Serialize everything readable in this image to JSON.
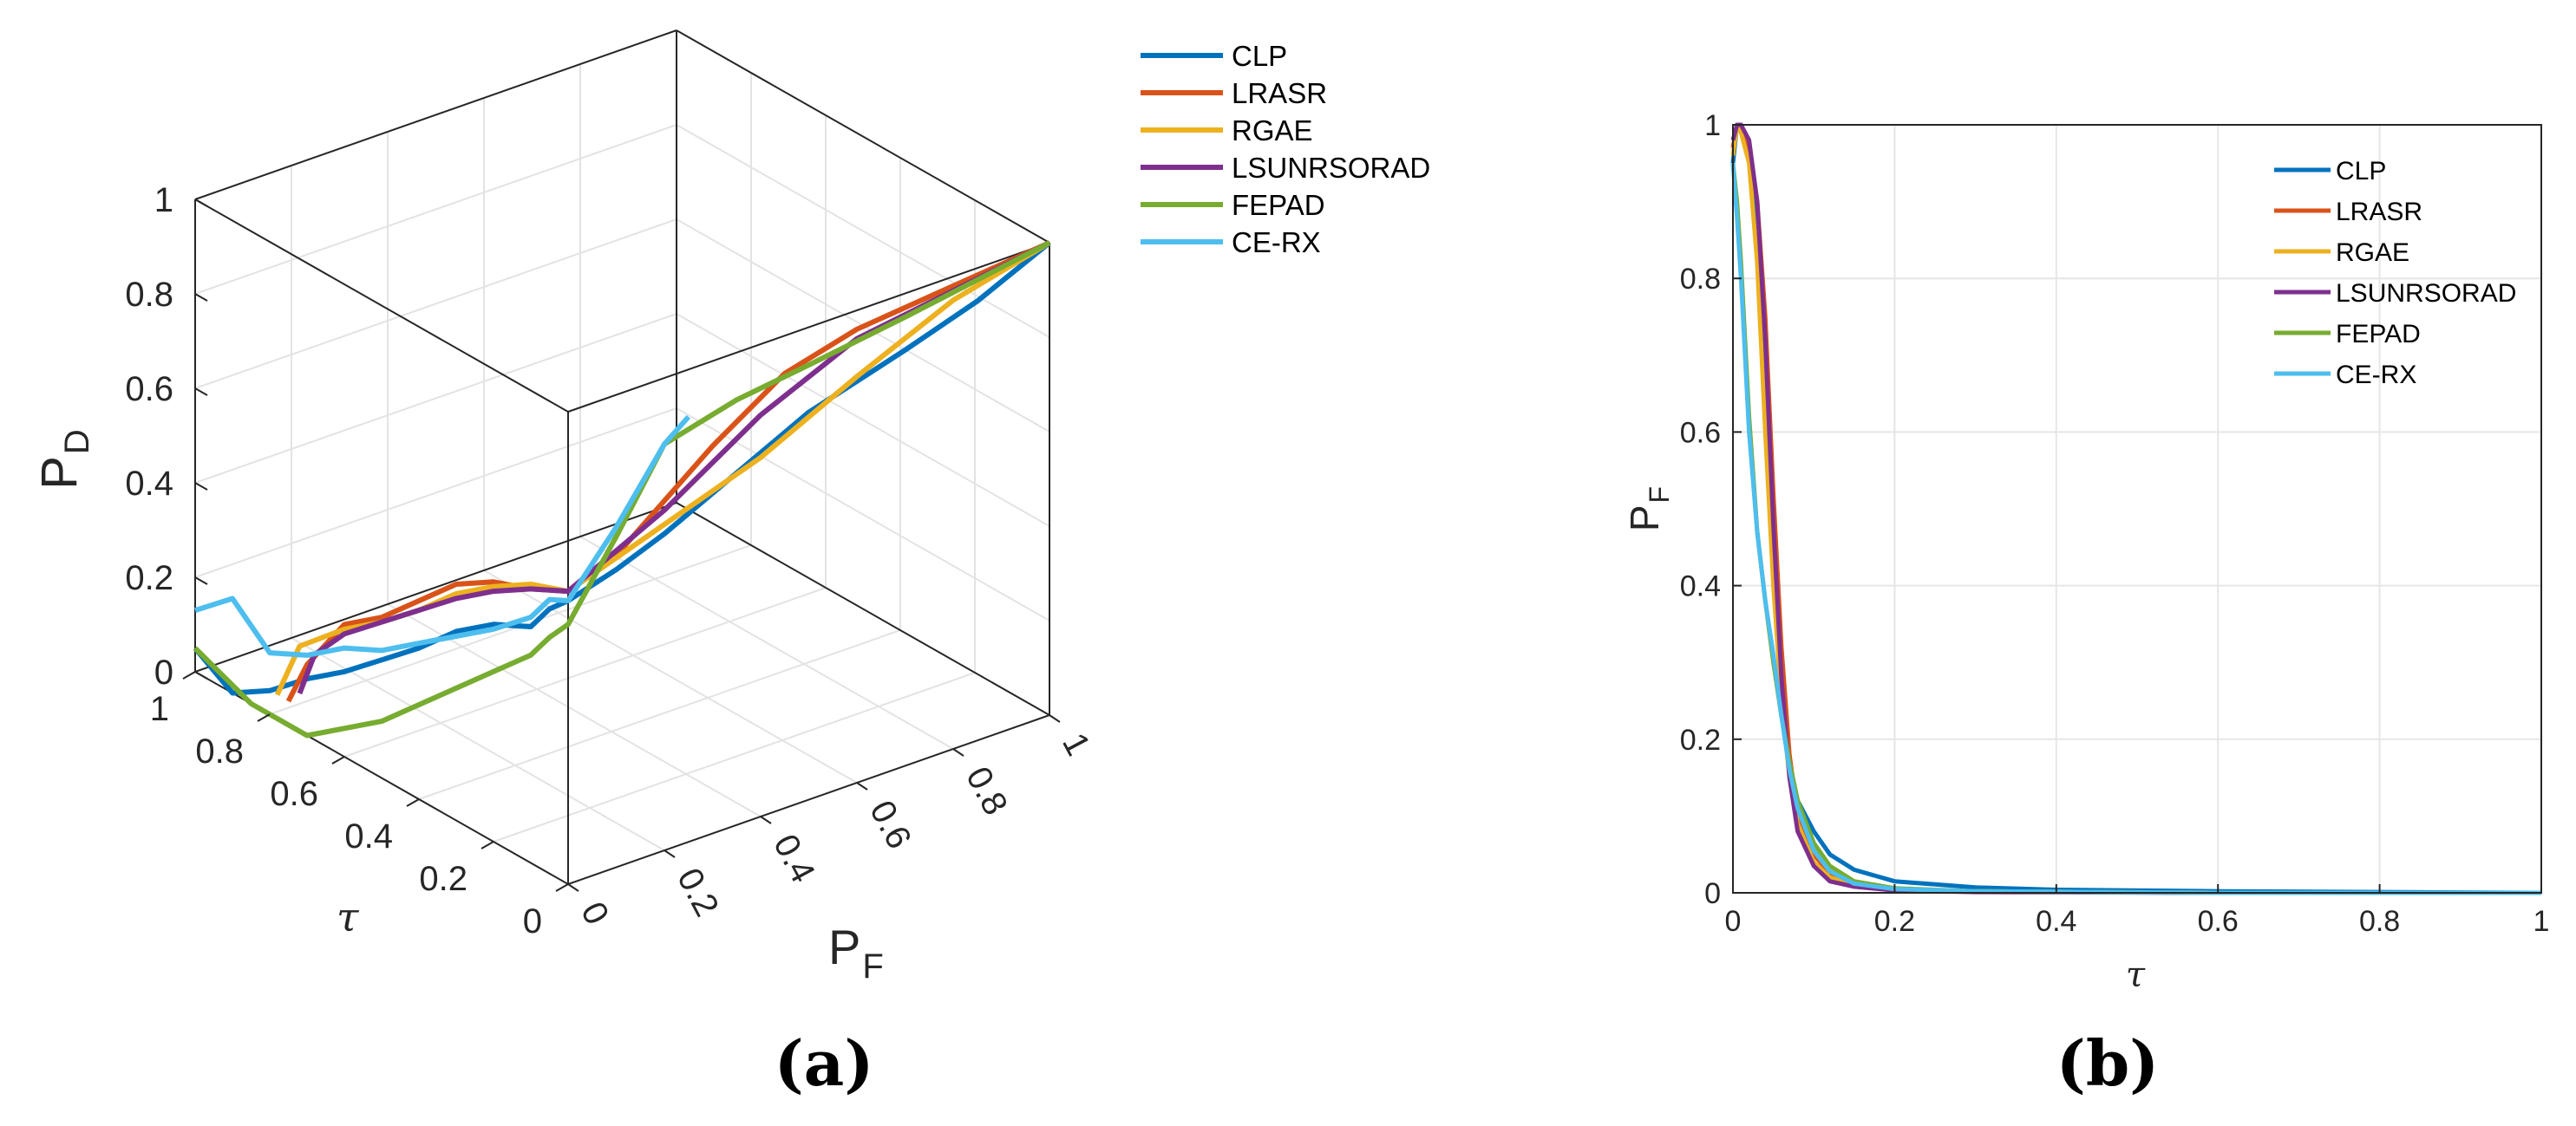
{
  "chart_data": [
    {
      "panel": "(a)",
      "type": "line3d",
      "series_names": [
        "CLP",
        "LRASR",
        "RGAE",
        "LSUNRSORAD",
        "FEPAD",
        "CE-RX"
      ],
      "colors": {
        "CLP": "#0072BD",
        "LRASR": "#D95319",
        "RGAE": "#EDB120",
        "LSUNRSORAD": "#7E2F8E",
        "FEPAD": "#77AC30",
        "CE-RX": "#4DBEEE"
      },
      "x_label_main": "P",
      "x_label_sub": "F",
      "y_label": "τ",
      "z_label_main": "P",
      "z_label_sub": "D",
      "x_ticks": [
        "0",
        "0.2",
        "0.4",
        "0.6",
        "0.8",
        "1"
      ],
      "y_ticks": [
        "0",
        "0.2",
        "0.4",
        "0.6",
        "0.8",
        "1"
      ],
      "z_ticks": [
        "0",
        "0.2",
        "0.4",
        "0.6",
        "0.8",
        "1"
      ],
      "xlim": [
        0,
        1
      ],
      "ylim": [
        0,
        1
      ],
      "zlim": [
        0,
        1
      ],
      "series": [
        {
          "name": "CLP",
          "points": [
            [
              0,
              1,
              0.05
            ],
            [
              0,
              0.9,
              0.0
            ],
            [
              0,
              0.8,
              0.05
            ],
            [
              0,
              0.7,
              0.12
            ],
            [
              0,
              0.6,
              0.18
            ],
            [
              0,
              0.5,
              0.25
            ],
            [
              0,
              0.4,
              0.32
            ],
            [
              0,
              0.3,
              0.4
            ],
            [
              0,
              0.2,
              0.46
            ],
            [
              0,
              0.1,
              0.5
            ],
            [
              0,
              0.05,
              0.56
            ],
            [
              0,
              0,
              0.6
            ],
            [
              0.1,
              0,
              0.63
            ],
            [
              0.2,
              0,
              0.67
            ],
            [
              0.3,
              0,
              0.72
            ],
            [
              0.5,
              0,
              0.82
            ],
            [
              0.7,
              0,
              0.88
            ],
            [
              0.85,
              0,
              0.93
            ],
            [
              1,
              0,
              1.0
            ]
          ]
        },
        {
          "name": "LRASR",
          "points": [
            [
              0,
              0.75,
              0.05
            ],
            [
              0,
              0.7,
              0.15
            ],
            [
              0,
              0.6,
              0.28
            ],
            [
              0,
              0.5,
              0.34
            ],
            [
              0,
              0.4,
              0.42
            ],
            [
              0,
              0.3,
              0.5
            ],
            [
              0,
              0.2,
              0.55
            ],
            [
              0,
              0.1,
              0.58
            ],
            [
              0,
              0,
              0.62
            ],
            [
              0.1,
              0,
              0.66
            ],
            [
              0.3,
              0,
              0.82
            ],
            [
              0.45,
              0,
              0.92
            ],
            [
              0.6,
              0,
              0.96
            ],
            [
              1,
              0,
              1.0
            ]
          ]
        },
        {
          "name": "RGAE",
          "points": [
            [
              0,
              0.78,
              0.05
            ],
            [
              0,
              0.72,
              0.18
            ],
            [
              0,
              0.6,
              0.27
            ],
            [
              0,
              0.5,
              0.33
            ],
            [
              0,
              0.4,
              0.4
            ],
            [
              0,
              0.3,
              0.48
            ],
            [
              0,
              0.2,
              0.54
            ],
            [
              0,
              0.1,
              0.59
            ],
            [
              0,
              0,
              0.62
            ],
            [
              0.2,
              0,
              0.69
            ],
            [
              0.4,
              0,
              0.76
            ],
            [
              0.6,
              0,
              0.86
            ],
            [
              0.8,
              0,
              0.95
            ],
            [
              1,
              0,
              1.0
            ]
          ]
        },
        {
          "name": "LSUNRSORAD",
          "points": [
            [
              0,
              0.72,
              0.08
            ],
            [
              0,
              0.68,
              0.18
            ],
            [
              0,
              0.6,
              0.26
            ],
            [
              0,
              0.5,
              0.33
            ],
            [
              0,
              0.4,
              0.4
            ],
            [
              0,
              0.3,
              0.47
            ],
            [
              0,
              0.2,
              0.53
            ],
            [
              0,
              0.1,
              0.58
            ],
            [
              0,
              0,
              0.62
            ],
            [
              0.2,
              0,
              0.72
            ],
            [
              0.4,
              0,
              0.85
            ],
            [
              0.6,
              0,
              0.94
            ],
            [
              0.8,
              0,
              0.97
            ],
            [
              1,
              0,
              1.0
            ]
          ]
        },
        {
          "name": "FEPAD",
          "points": [
            [
              0,
              1,
              0.05
            ],
            [
              0,
              0.85,
              0.0
            ],
            [
              0,
              0.7,
              0.0
            ],
            [
              0,
              0.6,
              0.06
            ],
            [
              0,
              0.5,
              0.12
            ],
            [
              0,
              0.4,
              0.2
            ],
            [
              0,
              0.3,
              0.28
            ],
            [
              0,
              0.2,
              0.36
            ],
            [
              0,
              0.1,
              0.44
            ],
            [
              0,
              0.05,
              0.5
            ],
            [
              0,
              0,
              0.55
            ],
            [
              0.1,
              0,
              0.7
            ],
            [
              0.2,
              0,
              0.86
            ],
            [
              0.35,
              0,
              0.9
            ],
            [
              0.5,
              0,
              0.92
            ],
            [
              0.7,
              0,
              0.95
            ],
            [
              1,
              0,
              1.0
            ]
          ]
        },
        {
          "name": "CE-RX",
          "points": [
            [
              0,
              1,
              0.13
            ],
            [
              0,
              0.9,
              0.2
            ],
            [
              0,
              0.8,
              0.13
            ],
            [
              0,
              0.7,
              0.17
            ],
            [
              0,
              0.6,
              0.23
            ],
            [
              0,
              0.5,
              0.27
            ],
            [
              0,
              0.4,
              0.33
            ],
            [
              0,
              0.3,
              0.39
            ],
            [
              0,
              0.2,
              0.45
            ],
            [
              0,
              0.1,
              0.52
            ],
            [
              0,
              0.05,
              0.58
            ],
            [
              0,
              0,
              0.6
            ],
            [
              0.1,
              0,
              0.72
            ],
            [
              0.2,
              0,
              0.86
            ],
            [
              0.25,
              0,
              0.9
            ]
          ]
        }
      ]
    },
    {
      "panel": "(b)",
      "type": "line",
      "series_names": [
        "CLP",
        "LRASR",
        "RGAE",
        "LSUNRSORAD",
        "FEPAD",
        "CE-RX"
      ],
      "colors": {
        "CLP": "#0072BD",
        "LRASR": "#D95319",
        "RGAE": "#EDB120",
        "LSUNRSORAD": "#7E2F8E",
        "FEPAD": "#77AC30",
        "CE-RX": "#4DBEEE"
      },
      "xlabel": "τ",
      "ylabel_main": "P",
      "ylabel_sub": "F",
      "x_ticks": [
        "0",
        "0.2",
        "0.4",
        "0.6",
        "0.8",
        "1"
      ],
      "y_ticks": [
        "0",
        "0.2",
        "0.4",
        "0.6",
        "0.8",
        "1"
      ],
      "xlim": [
        0,
        1
      ],
      "ylim": [
        0,
        1
      ],
      "grid": true,
      "legend": "top-right",
      "series": [
        {
          "name": "CLP",
          "x": [
            0,
            0.005,
            0.01,
            0.02,
            0.03,
            0.04,
            0.05,
            0.06,
            0.07,
            0.08,
            0.1,
            0.12,
            0.15,
            0.2,
            0.3,
            0.4,
            0.6,
            1.0
          ],
          "y": [
            0.95,
            1.0,
            1.0,
            0.96,
            0.85,
            0.65,
            0.42,
            0.26,
            0.17,
            0.12,
            0.08,
            0.05,
            0.03,
            0.015,
            0.007,
            0.004,
            0.002,
            0.0
          ]
        },
        {
          "name": "LRASR",
          "x": [
            0,
            0.005,
            0.01,
            0.02,
            0.03,
            0.04,
            0.05,
            0.06,
            0.07,
            0.08,
            0.1,
            0.12,
            0.15,
            0.2,
            0.3,
            0.6,
            1.0
          ],
          "y": [
            0.97,
            1.0,
            1.0,
            0.97,
            0.9,
            0.75,
            0.52,
            0.32,
            0.18,
            0.1,
            0.05,
            0.025,
            0.012,
            0.005,
            0.002,
            0.0,
            0.0
          ]
        },
        {
          "name": "RGAE",
          "x": [
            0,
            0.005,
            0.01,
            0.02,
            0.03,
            0.04,
            0.05,
            0.06,
            0.07,
            0.08,
            0.1,
            0.12,
            0.15,
            0.2,
            0.3,
            0.6,
            1.0
          ],
          "y": [
            0.96,
            1.0,
            0.99,
            0.95,
            0.82,
            0.6,
            0.4,
            0.25,
            0.15,
            0.09,
            0.04,
            0.02,
            0.01,
            0.004,
            0.002,
            0.0,
            0.0
          ]
        },
        {
          "name": "LSUNRSORAD",
          "x": [
            0,
            0.005,
            0.01,
            0.02,
            0.03,
            0.04,
            0.05,
            0.06,
            0.07,
            0.08,
            0.1,
            0.12,
            0.15,
            0.2,
            0.3,
            0.6,
            1.0
          ],
          "y": [
            0.98,
            1.0,
            1.0,
            0.98,
            0.9,
            0.72,
            0.48,
            0.28,
            0.15,
            0.08,
            0.035,
            0.015,
            0.008,
            0.003,
            0.001,
            0.0,
            0.0
          ]
        },
        {
          "name": "FEPAD",
          "x": [
            0,
            0.005,
            0.01,
            0.02,
            0.03,
            0.04,
            0.05,
            0.06,
            0.07,
            0.08,
            0.1,
            0.12,
            0.15,
            0.2,
            0.3,
            0.6,
            1.0
          ],
          "y": [
            0.95,
            0.9,
            0.82,
            0.62,
            0.47,
            0.38,
            0.3,
            0.23,
            0.17,
            0.12,
            0.065,
            0.035,
            0.015,
            0.006,
            0.002,
            0.0,
            0.0
          ]
        },
        {
          "name": "CE-RX",
          "x": [
            0,
            0.005,
            0.01,
            0.02,
            0.03,
            0.04,
            0.05,
            0.06,
            0.07,
            0.08,
            0.1,
            0.12,
            0.15,
            0.2,
            0.3,
            0.6,
            1.0
          ],
          "y": [
            0.95,
            0.88,
            0.8,
            0.6,
            0.47,
            0.38,
            0.31,
            0.23,
            0.16,
            0.11,
            0.055,
            0.028,
            0.012,
            0.005,
            0.002,
            0.0,
            0.0
          ]
        }
      ]
    }
  ]
}
